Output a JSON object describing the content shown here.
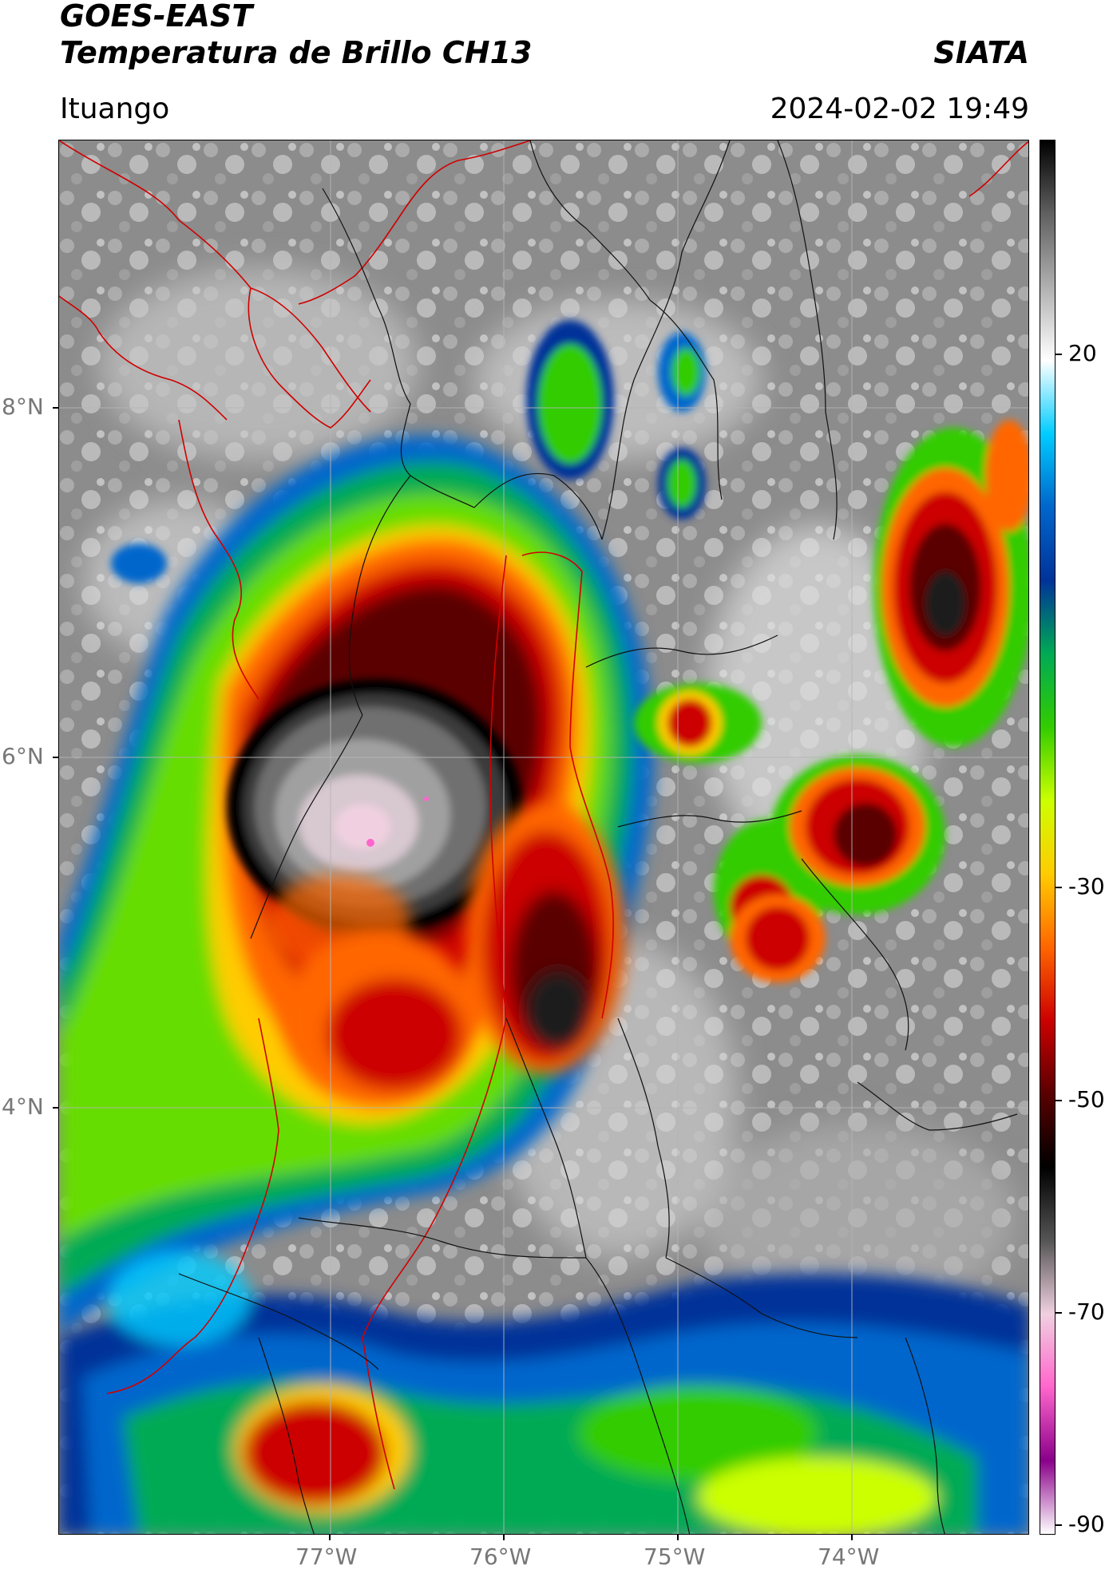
{
  "header": {
    "satellite": "GOES-EAST",
    "product": "Temperatura de Brillo CH13",
    "brand": "SIATA",
    "location": "Ituango",
    "datetime": "2024-02-02 19:49"
  },
  "map": {
    "lat_ticks": [
      "8°N",
      "6°N",
      "4°N"
    ],
    "lon_ticks": [
      "77°W",
      "76°W",
      "75°W",
      "74°W"
    ],
    "colors": {
      "land_gray": "#8a8a8a",
      "border_red": "#d00000",
      "border_black": "#000000",
      "gridline": "#b5b5b5"
    }
  },
  "colorbar": {
    "ticks": [
      "20",
      "-30",
      "-50",
      "-70",
      "-90"
    ],
    "units_label": "",
    "colors": [
      "#ffffff",
      "#8a008a",
      "#ff66cc",
      "#f0d0e0",
      "#555555",
      "#000000",
      "#5a0000",
      "#cc0000",
      "#ff6600",
      "#ffcc00",
      "#ccff00",
      "#33cc00",
      "#00aa55",
      "#003399",
      "#0066cc",
      "#00ccff",
      "#ffffff",
      "#b0b0b0",
      "#606060",
      "#000000"
    ]
  }
}
